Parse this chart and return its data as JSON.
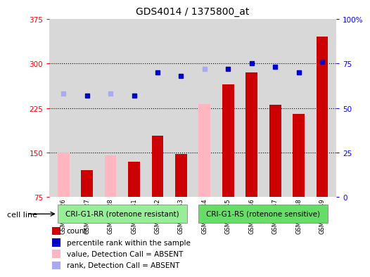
{
  "title": "GDS4014 / 1375800_at",
  "samples": [
    "GSM498426",
    "GSM498427",
    "GSM498428",
    "GSM498441",
    "GSM498442",
    "GSM498443",
    "GSM498444",
    "GSM498445",
    "GSM498446",
    "GSM498447",
    "GSM498448",
    "GSM498449"
  ],
  "count_values": [
    150,
    120,
    145,
    135,
    178,
    148,
    232,
    265,
    285,
    230,
    215,
    345
  ],
  "rank_values_pct": [
    58,
    57,
    58,
    57,
    70,
    68,
    72,
    72,
    75,
    73,
    70,
    76
  ],
  "absent_detection": [
    true,
    false,
    true,
    false,
    false,
    false,
    true,
    false,
    false,
    false,
    false,
    false
  ],
  "ylim_left": [
    75,
    375
  ],
  "ylim_right": [
    0,
    100
  ],
  "yticks_left": [
    75,
    150,
    225,
    300,
    375
  ],
  "yticks_right": [
    0,
    25,
    50,
    75,
    100
  ],
  "group1_label": "CRI-G1-RR (rotenone resistant)",
  "group2_label": "CRI-G1-RS (rotenone sensitive)",
  "group1_color": "#90EE90",
  "group2_color": "#90EE90",
  "bar_color_dark_red": "#CC0000",
  "bar_color_pink": "#FFB6C1",
  "dot_color_dark_blue": "#0000CC",
  "dot_color_light_blue": "#AAAAEE",
  "background_plot": "#D8D8D8",
  "cell_line_label": "cell line",
  "legend_items": [
    {
      "label": "count",
      "color": "#CC0000"
    },
    {
      "label": "percentile rank within the sample",
      "color": "#0000CC"
    },
    {
      "label": "value, Detection Call = ABSENT",
      "color": "#FFB6C1"
    },
    {
      "label": "rank, Detection Call = ABSENT",
      "color": "#AAAAEE"
    }
  ]
}
